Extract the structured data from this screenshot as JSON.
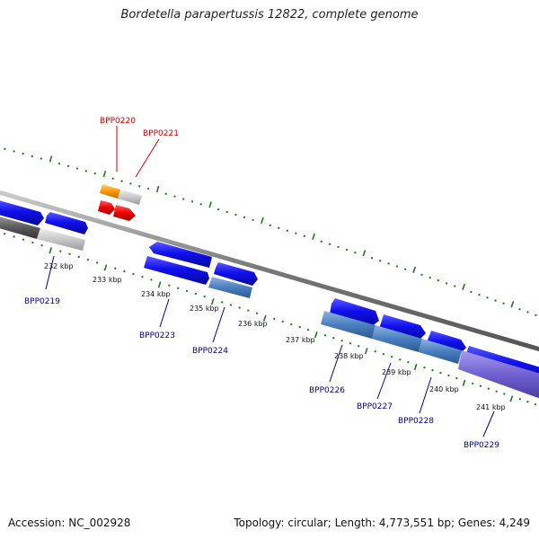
{
  "title": "Bordetella parapertussis 12822, complete genome",
  "footer": {
    "accession": "Accession: NC_002928",
    "summary": "Topology: circular; Length: 4,773,551 bp; Genes: 4,249"
  },
  "colors": {
    "backbone": "#777777",
    "tick": "#1a7a1a",
    "forward_gene": "#1010ee",
    "reverse_gene": "#4a7fbf",
    "highlight_red": "#ee0000",
    "highlight_orange": "#ff9900",
    "label_blue": "#00008b",
    "label_red": "#cc0000"
  },
  "ruler": {
    "labels": [
      "232 kbp",
      "233 kbp",
      "234 kbp",
      "235 kbp",
      "236 kbp",
      "237 kbp",
      "238 kbp",
      "239 kbp",
      "240 kbp",
      "241 kbp"
    ]
  },
  "gene_labels": [
    {
      "name": "BPP0220",
      "color": "red"
    },
    {
      "name": "BPP0221",
      "color": "red"
    },
    {
      "name": "BPP0219",
      "color": "blue"
    },
    {
      "name": "BPP0223",
      "color": "blue"
    },
    {
      "name": "BPP0224",
      "color": "blue"
    },
    {
      "name": "BPP0226",
      "color": "blue"
    },
    {
      "name": "BPP0227",
      "color": "blue"
    },
    {
      "name": "BPP0228",
      "color": "blue"
    },
    {
      "name": "BPP0229",
      "color": "blue"
    }
  ]
}
